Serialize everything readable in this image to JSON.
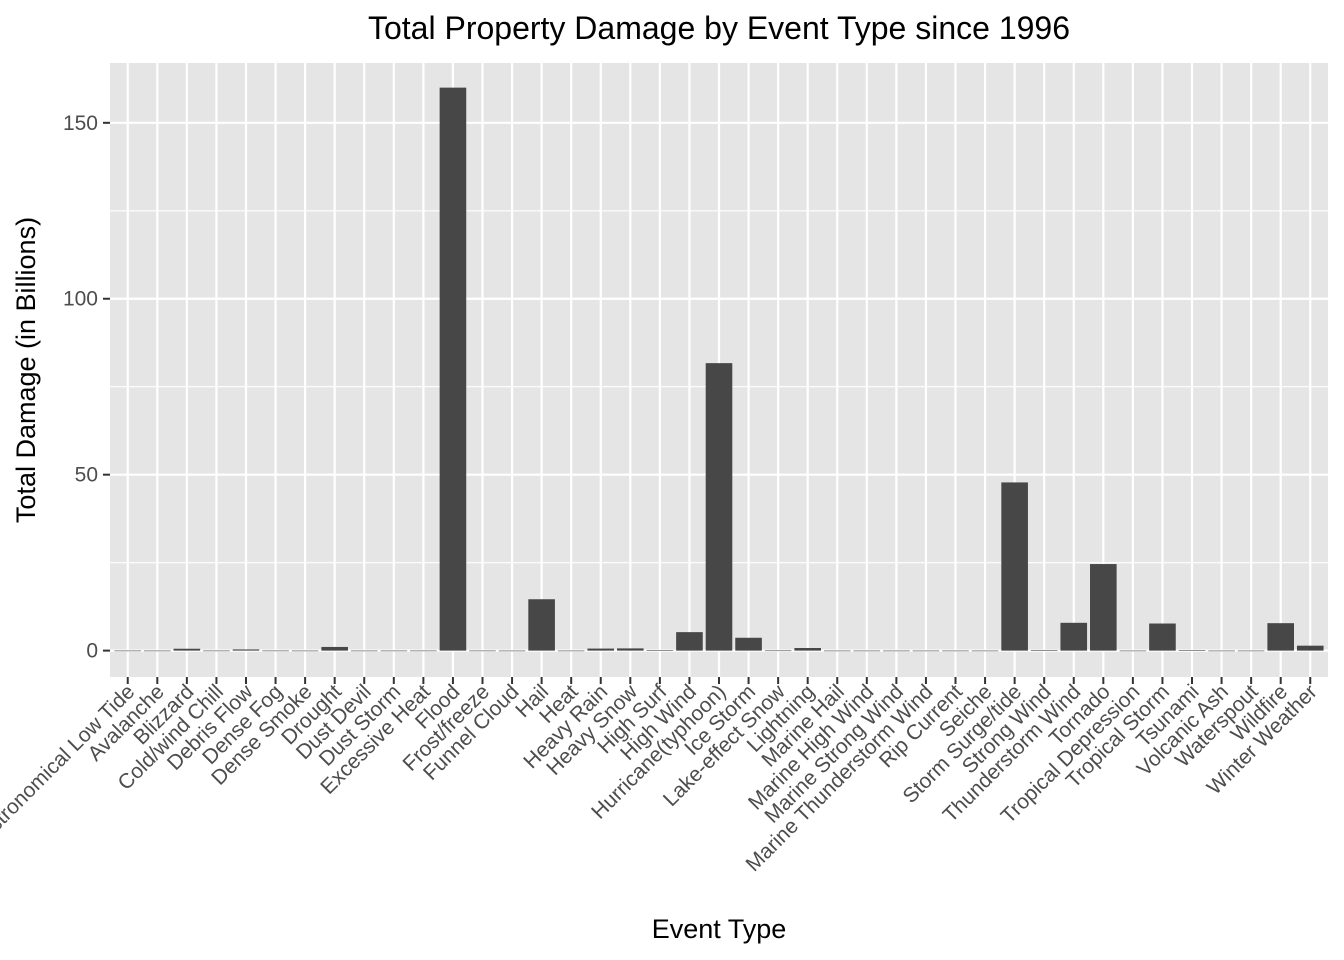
{
  "chart_data": {
    "type": "bar",
    "title": "Total Property Damage by Event Type since 1996",
    "xlabel": "Event Type",
    "ylabel": "Total Damage (in Billions)",
    "ylim": [
      -7.5,
      167
    ],
    "yticks": [
      0,
      50,
      100,
      150
    ],
    "grid": true,
    "legend": "none",
    "colors": {
      "panel": "#e5e5e5",
      "grid_major": "#ffffff",
      "bar": "#474747",
      "tick": "#333333",
      "tick_label": "#4d4d4d"
    },
    "categories": [
      "Astronomical Low Tide",
      "Avalanche",
      "Blizzard",
      "Cold/wind Chill",
      "Debris Flow",
      "Dense Fog",
      "Dense Smoke",
      "Drought",
      "Dust Devil",
      "Dust Storm",
      "Excessive Heat",
      "Flood",
      "Frost/freeze",
      "Funnel Cloud",
      "Hail",
      "Heat",
      "Heavy Rain",
      "Heavy Snow",
      "High Surf",
      "High Wind",
      "Hurricane(typhoon)",
      "Ice Storm",
      "Lake-effect Snow",
      "Lightning",
      "Marine Hail",
      "Marine High Wind",
      "Marine Strong Wind",
      "Marine Thunderstorm Wind",
      "Rip Current",
      "Seiche",
      "Storm Surge/tide",
      "Strong Wind",
      "Thunderstorm Wind",
      "Tornado",
      "Tropical Depression",
      "Tropical Storm",
      "Tsunami",
      "Volcanic Ash",
      "Waterspout",
      "Wildfire",
      "Winter Weather"
    ],
    "values": [
      0.01,
      0.004,
      0.53,
      0.01,
      0.33,
      0.01,
      0.0,
      1.04,
      0.0,
      0.005,
      0.01,
      160.0,
      0.01,
      0.0,
      14.6,
      0.002,
      0.58,
      0.63,
      0.09,
      5.25,
      81.7,
      3.65,
      0.04,
      0.74,
      0.0,
      0.0,
      0.0,
      0.0,
      0.0,
      0.0,
      47.8,
      0.18,
      7.9,
      24.6,
      0.0,
      7.7,
      0.14,
      0.0,
      0.0,
      7.8,
      1.4
    ]
  }
}
